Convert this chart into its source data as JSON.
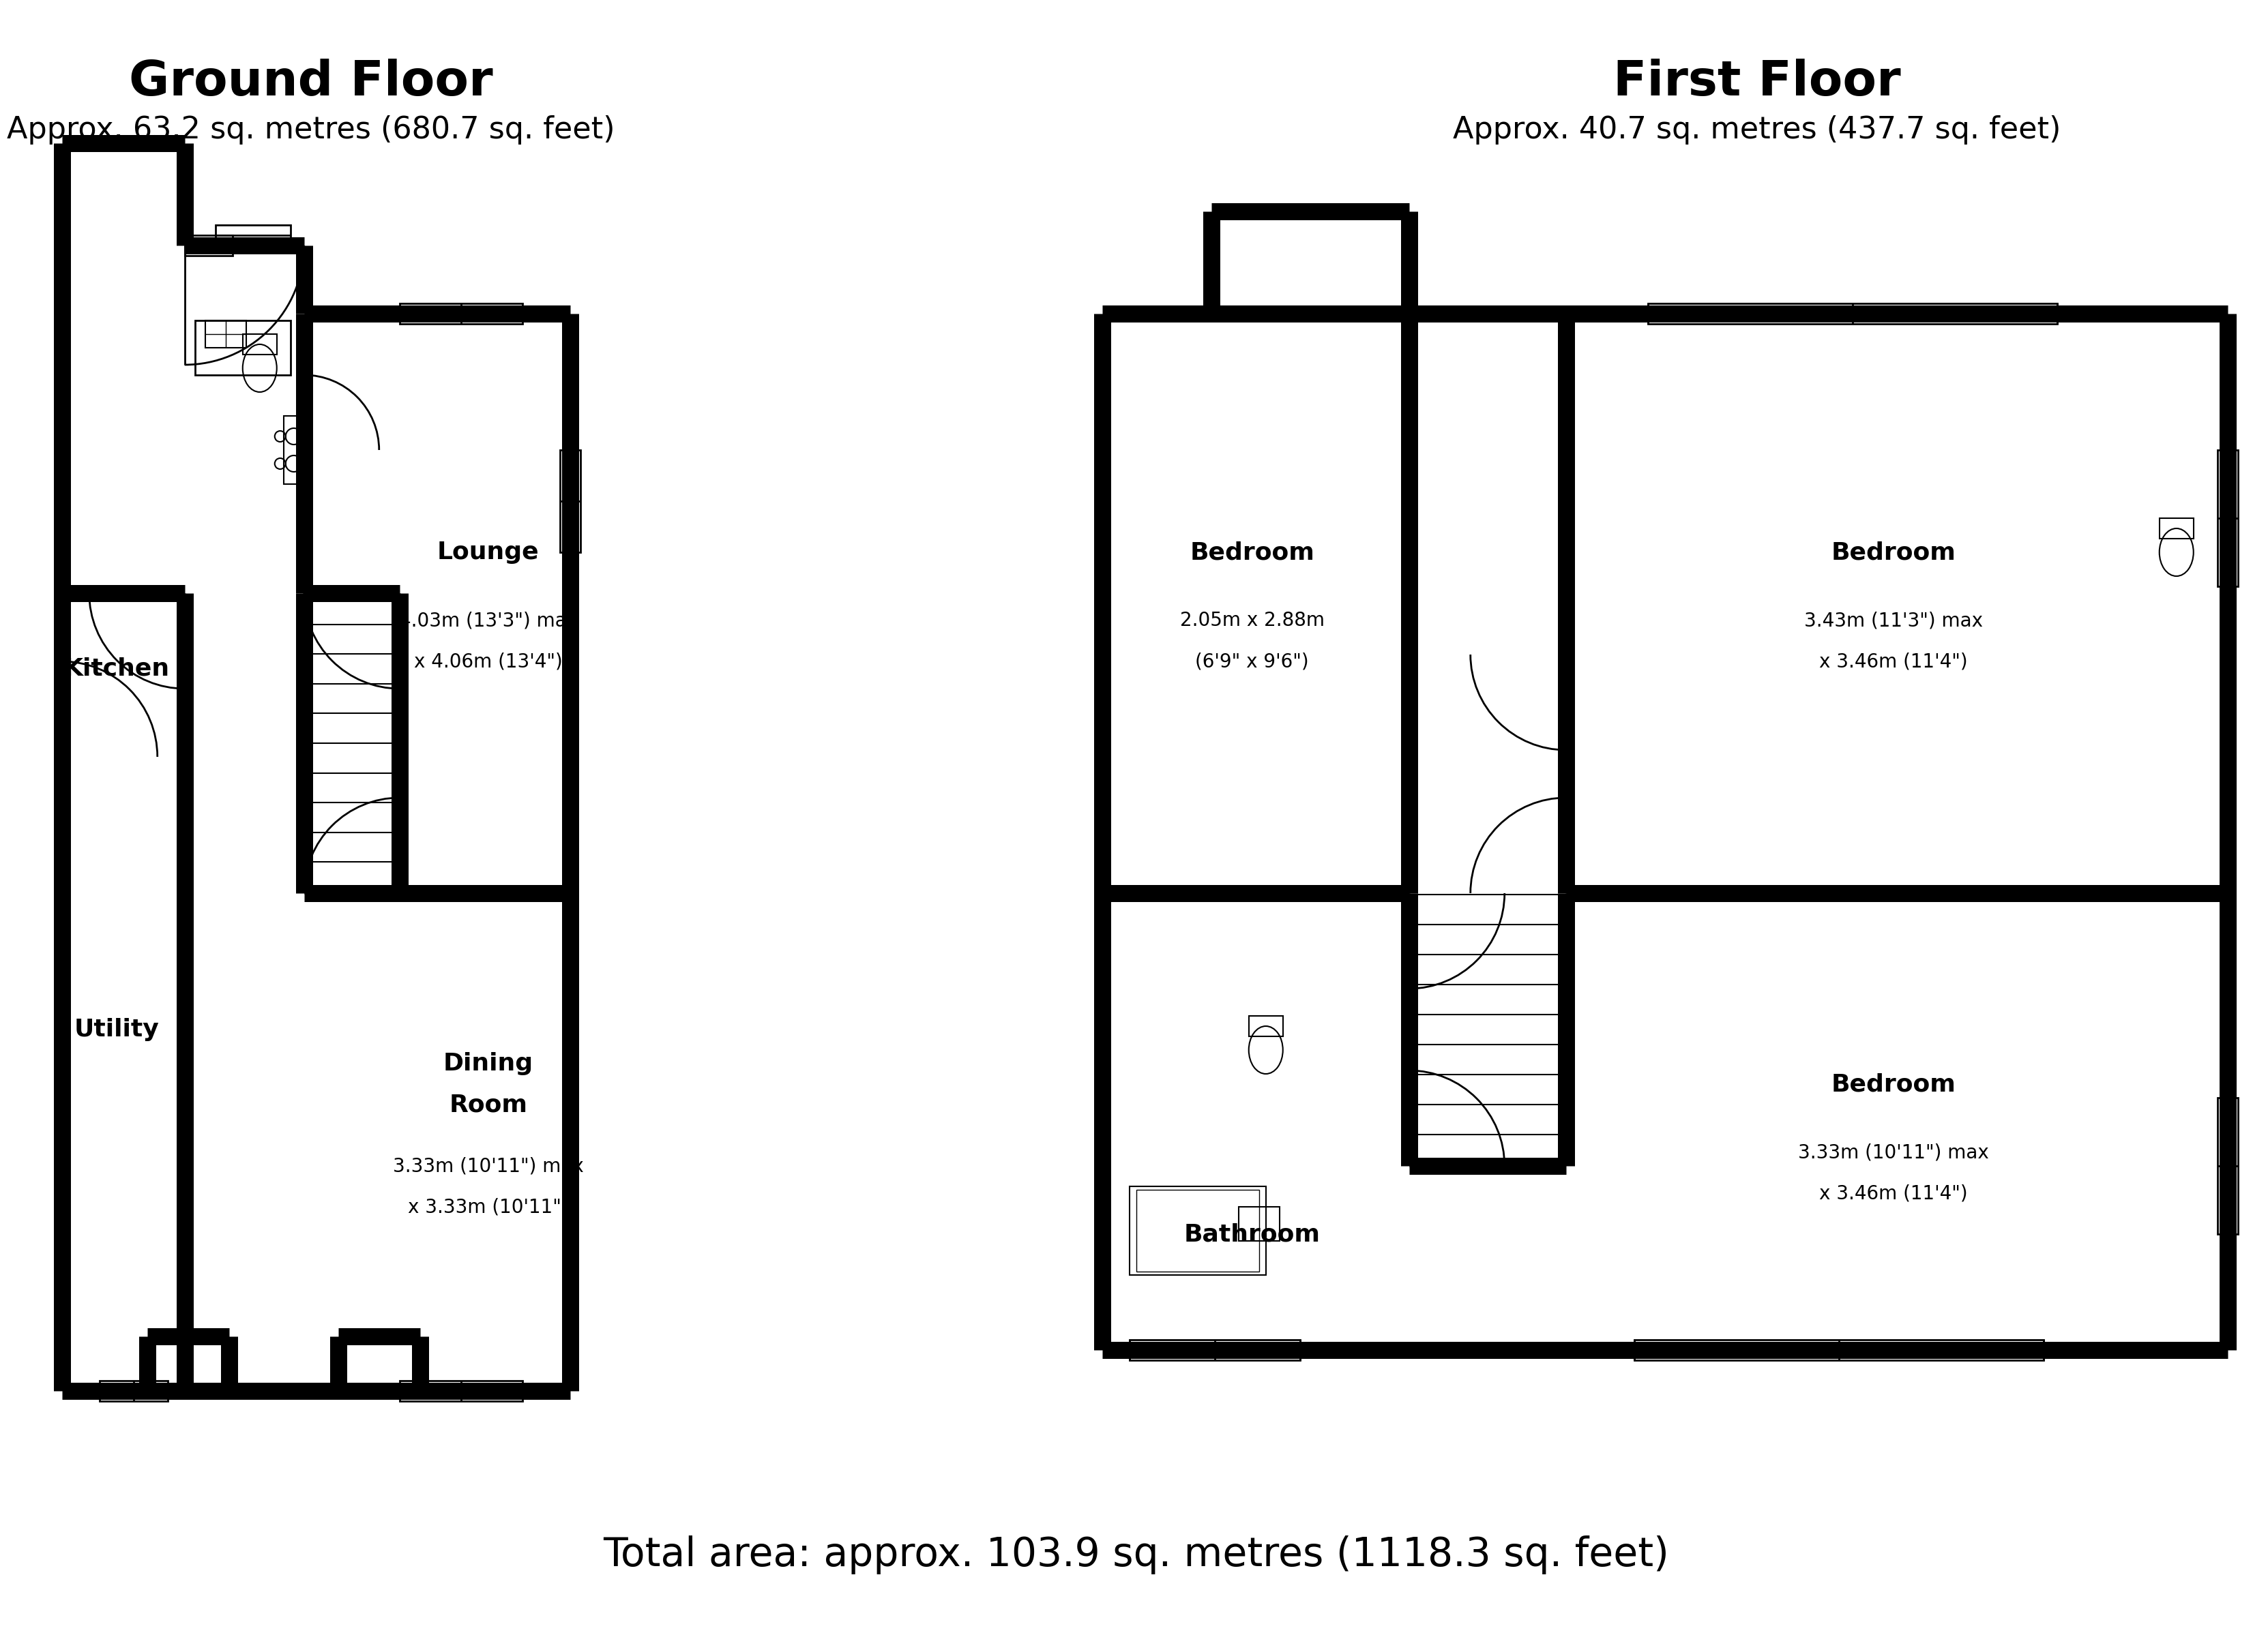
{
  "background_color": "#ffffff",
  "wall_color": "#000000",
  "title_gf": "Ground Floor",
  "subtitle_gf": "Approx. 63.2 sq. metres (680.7 sq. feet)",
  "title_ff": "First Floor",
  "subtitle_ff": "Approx. 40.7 sq. metres (437.7 sq. feet)",
  "footer": "Total area: approx. 103.9 sq. metres (1118.3 sq. feet)"
}
